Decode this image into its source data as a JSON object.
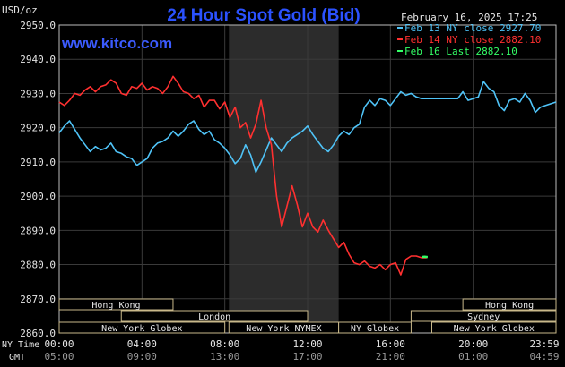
{
  "header": {
    "unit": "USD/oz",
    "title": "24 Hour Spot Gold (Bid)",
    "timestamp": "February 16, 2025 17:25",
    "site": "www.kitco.com"
  },
  "colors": {
    "background": "#000000",
    "plot_background": "#000000",
    "grid": "#3a3a3a",
    "market_shade": "#2c2c2c",
    "title": "#2b52ff",
    "site": "#3b5bff",
    "text": "#e6e6e6",
    "session_box": "#c8b88a",
    "feb13": "#4fc3f7",
    "feb14": "#ff3030",
    "feb16": "#33ff66"
  },
  "axis_labels": {
    "ny_time": "NY Time",
    "gmt": "GMT"
  },
  "sessions": [
    {
      "name": "Hong Kong",
      "start_hour": 0,
      "end_hour": 5.5,
      "row": 0
    },
    {
      "name": "Hong Kong",
      "start_hour": 19.5,
      "end_hour": 24,
      "row": 0
    },
    {
      "name": "London",
      "start_hour": 3,
      "end_hour": 12,
      "row": 1
    },
    {
      "name": "Sydney",
      "start_hour": 17,
      "end_hour": 24,
      "row": 1
    },
    {
      "name": "New York Globex",
      "start_hour": 0,
      "end_hour": 8,
      "row": 2
    },
    {
      "name": "New York NYMEX",
      "start_hour": 8.2,
      "end_hour": 13.5,
      "row": 2
    },
    {
      "name": "NY Globex",
      "start_hour": 13.5,
      "end_hour": 17,
      "row": 2
    },
    {
      "name": "New York Globex",
      "start_hour": 18,
      "end_hour": 24,
      "row": 2
    }
  ],
  "chart_data": {
    "type": "line",
    "title": "24 Hour Spot Gold (Bid)",
    "ylabel": "USD/oz",
    "ylim": [
      2860,
      2950
    ],
    "xlim": [
      0,
      24
    ],
    "grid": true,
    "legend_position": "top-right",
    "y_ticks": [
      "2950.0",
      "2940.0",
      "2930.0",
      "2920.0",
      "2910.0",
      "2900.0",
      "2890.0",
      "2880.0",
      "2870.0",
      "2860.0"
    ],
    "y_tick_values": [
      2950,
      2940,
      2930,
      2920,
      2910,
      2900,
      2890,
      2880,
      2870,
      2860
    ],
    "x_ticks": [
      "00:00",
      "04:00",
      "08:00",
      "12:00",
      "16:00",
      "20:00",
      "23:59"
    ],
    "x_tick_hours": [
      0,
      4,
      8,
      12,
      16,
      20,
      24
    ],
    "x_ticks_gmt": [
      "05:00",
      "09:00",
      "13:00",
      "17:00",
      "21:00",
      "01:00",
      "04:59"
    ],
    "market_hours_shade": [
      8.2,
      13.5
    ],
    "series": [
      {
        "name": "Feb 13 NY close 2927.70",
        "color": "#4fc3f7",
        "points": [
          [
            0,
            2918.5
          ],
          [
            0.25,
            2920.5
          ],
          [
            0.5,
            2922
          ],
          [
            0.75,
            2919.5
          ],
          [
            1,
            2917
          ],
          [
            1.25,
            2915
          ],
          [
            1.5,
            2913
          ],
          [
            1.75,
            2914.5
          ],
          [
            2,
            2913.5
          ],
          [
            2.25,
            2914
          ],
          [
            2.5,
            2915.5
          ],
          [
            2.75,
            2913
          ],
          [
            3,
            2912.5
          ],
          [
            3.25,
            2911.5
          ],
          [
            3.5,
            2911
          ],
          [
            3.75,
            2909
          ],
          [
            4,
            2910
          ],
          [
            4.25,
            2911
          ],
          [
            4.5,
            2914
          ],
          [
            4.75,
            2915.5
          ],
          [
            5,
            2916
          ],
          [
            5.25,
            2917
          ],
          [
            5.5,
            2919
          ],
          [
            5.75,
            2917.5
          ],
          [
            6,
            2919
          ],
          [
            6.25,
            2921
          ],
          [
            6.5,
            2922
          ],
          [
            6.75,
            2919.5
          ],
          [
            7,
            2918
          ],
          [
            7.25,
            2919
          ],
          [
            7.5,
            2916.5
          ],
          [
            7.75,
            2915.5
          ],
          [
            8,
            2914
          ],
          [
            8.25,
            2912
          ],
          [
            8.5,
            2909.5
          ],
          [
            8.75,
            2911
          ],
          [
            9,
            2915
          ],
          [
            9.25,
            2912
          ],
          [
            9.5,
            2907
          ],
          [
            9.75,
            2910
          ],
          [
            10,
            2913.5
          ],
          [
            10.25,
            2917
          ],
          [
            10.5,
            2915
          ],
          [
            10.75,
            2913
          ],
          [
            11,
            2915.5
          ],
          [
            11.25,
            2917
          ],
          [
            11.5,
            2918
          ],
          [
            11.75,
            2919
          ],
          [
            12,
            2920.5
          ],
          [
            12.25,
            2918
          ],
          [
            12.5,
            2916
          ],
          [
            12.75,
            2914
          ],
          [
            13,
            2913
          ],
          [
            13.25,
            2915
          ],
          [
            13.5,
            2917.5
          ],
          [
            13.75,
            2919
          ],
          [
            14,
            2918
          ],
          [
            14.25,
            2920
          ],
          [
            14.5,
            2921
          ],
          [
            14.75,
            2926
          ],
          [
            15,
            2928
          ],
          [
            15.25,
            2926.5
          ],
          [
            15.5,
            2928.5
          ],
          [
            15.75,
            2928
          ],
          [
            16,
            2926.5
          ],
          [
            16.25,
            2928.5
          ],
          [
            16.5,
            2930.5
          ],
          [
            16.75,
            2929.5
          ],
          [
            17,
            2930
          ],
          [
            17.25,
            2929
          ],
          [
            17.5,
            2928.5
          ],
          [
            17.75,
            2928.5
          ],
          [
            18,
            2928.5
          ],
          [
            18.25,
            2928.5
          ],
          [
            18.5,
            2928.5
          ],
          [
            18.75,
            2928.5
          ],
          [
            19,
            2928.5
          ],
          [
            19.25,
            2928.5
          ],
          [
            19.5,
            2930.5
          ],
          [
            19.75,
            2928
          ],
          [
            20,
            2928.5
          ],
          [
            20.25,
            2929
          ],
          [
            20.5,
            2933.5
          ],
          [
            20.75,
            2931.5
          ],
          [
            21,
            2930.5
          ],
          [
            21.25,
            2926.5
          ],
          [
            21.5,
            2925
          ],
          [
            21.75,
            2928
          ],
          [
            22,
            2928.5
          ],
          [
            22.25,
            2927.5
          ],
          [
            22.5,
            2930
          ],
          [
            22.75,
            2928
          ],
          [
            23,
            2924.5
          ],
          [
            23.25,
            2926
          ],
          [
            23.5,
            2926.5
          ],
          [
            23.75,
            2927
          ],
          [
            24,
            2927.5
          ]
        ]
      },
      {
        "name": "Feb 14 NY close 2882.10",
        "color": "#ff3030",
        "points": [
          [
            0,
            2927.5
          ],
          [
            0.25,
            2926.5
          ],
          [
            0.5,
            2928
          ],
          [
            0.75,
            2930
          ],
          [
            1,
            2929.5
          ],
          [
            1.25,
            2931
          ],
          [
            1.5,
            2932
          ],
          [
            1.75,
            2930.5
          ],
          [
            2,
            2932
          ],
          [
            2.25,
            2932.5
          ],
          [
            2.5,
            2934
          ],
          [
            2.75,
            2933
          ],
          [
            3,
            2930
          ],
          [
            3.25,
            2929.5
          ],
          [
            3.5,
            2932
          ],
          [
            3.75,
            2931.5
          ],
          [
            4,
            2933
          ],
          [
            4.25,
            2931
          ],
          [
            4.5,
            2932
          ],
          [
            4.75,
            2931.5
          ],
          [
            5,
            2930
          ],
          [
            5.25,
            2932
          ],
          [
            5.5,
            2935
          ],
          [
            5.75,
            2933
          ],
          [
            6,
            2930.5
          ],
          [
            6.25,
            2930
          ],
          [
            6.5,
            2928.5
          ],
          [
            6.75,
            2929.5
          ],
          [
            7,
            2926
          ],
          [
            7.25,
            2928
          ],
          [
            7.5,
            2928
          ],
          [
            7.75,
            2925.5
          ],
          [
            8,
            2927.5
          ],
          [
            8.25,
            2923
          ],
          [
            8.5,
            2926
          ],
          [
            8.75,
            2920
          ],
          [
            9,
            2921.5
          ],
          [
            9.25,
            2917
          ],
          [
            9.5,
            2921
          ],
          [
            9.75,
            2928
          ],
          [
            10,
            2920
          ],
          [
            10.25,
            2915
          ],
          [
            10.5,
            2900
          ],
          [
            10.75,
            2891
          ],
          [
            11,
            2897
          ],
          [
            11.25,
            2903
          ],
          [
            11.5,
            2897.5
          ],
          [
            11.75,
            2891
          ],
          [
            12,
            2895
          ],
          [
            12.25,
            2891
          ],
          [
            12.5,
            2889.5
          ],
          [
            12.75,
            2893
          ],
          [
            13,
            2890
          ],
          [
            13.25,
            2887.5
          ],
          [
            13.5,
            2885
          ],
          [
            13.75,
            2886.5
          ],
          [
            14,
            2883
          ],
          [
            14.25,
            2880.5
          ],
          [
            14.5,
            2880
          ],
          [
            14.75,
            2881
          ],
          [
            15,
            2879.5
          ],
          [
            15.25,
            2879
          ],
          [
            15.5,
            2880
          ],
          [
            15.75,
            2878.5
          ],
          [
            16,
            2880
          ],
          [
            16.25,
            2880.5
          ],
          [
            16.5,
            2877
          ],
          [
            16.75,
            2881.5
          ],
          [
            17,
            2882.5
          ],
          [
            17.25,
            2882.5
          ],
          [
            17.5,
            2882
          ],
          [
            17.75,
            2882
          ]
        ]
      },
      {
        "name": "Feb 16 Last 2882.10",
        "color": "#33ff66",
        "points": [
          [
            17.5,
            2882.2
          ],
          [
            17.65,
            2882.3
          ],
          [
            17.8,
            2882.2
          ]
        ]
      }
    ]
  }
}
